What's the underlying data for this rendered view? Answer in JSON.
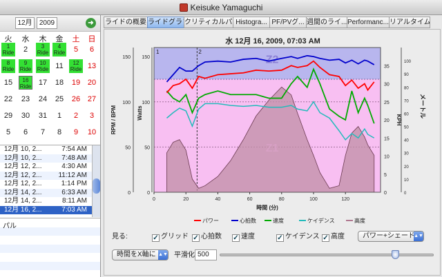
{
  "window": {
    "title": "Keisuke Yamaguchi"
  },
  "calendar": {
    "month": "12月",
    "year": "2009",
    "weekdays": [
      "火",
      "水",
      "木",
      "金",
      "土",
      "日"
    ],
    "days": [
      {
        "label": "1",
        "sub": "Ride",
        "ride": true,
        "col": 0,
        "row": 0
      },
      {
        "label": "2",
        "col": 1,
        "row": 0
      },
      {
        "label": "3",
        "sub": "Ride",
        "ride": true,
        "col": 2,
        "row": 0
      },
      {
        "label": "4",
        "sub": "Ride",
        "ride": true,
        "col": 3,
        "row": 0
      },
      {
        "label": "5",
        "red": true,
        "col": 4,
        "row": 0
      },
      {
        "label": "6",
        "red": true,
        "col": 5,
        "row": 0
      },
      {
        "label": "8",
        "sub": "Ride",
        "ride": true,
        "col": 0,
        "row": 1
      },
      {
        "label": "9",
        "sub": "Ride",
        "ride": true,
        "col": 1,
        "row": 1
      },
      {
        "label": "10",
        "sub": "Ride",
        "ride": true,
        "col": 2,
        "row": 1
      },
      {
        "label": "11",
        "col": 3,
        "row": 1
      },
      {
        "label": "12",
        "sub": "Ride",
        "ride": true,
        "col": 4,
        "row": 1
      },
      {
        "label": "13",
        "red": true,
        "col": 5,
        "row": 1
      },
      {
        "label": "15",
        "col": 0,
        "row": 2
      },
      {
        "label": "16",
        "sub": "Ride",
        "ride": true,
        "sel": true,
        "col": 1,
        "row": 2
      },
      {
        "label": "17",
        "col": 2,
        "row": 2
      },
      {
        "label": "18",
        "col": 3,
        "row": 2
      },
      {
        "label": "19",
        "red": true,
        "col": 4,
        "row": 2
      },
      {
        "label": "20",
        "red": true,
        "col": 5,
        "row": 2
      },
      {
        "label": "22",
        "col": 0,
        "row": 3
      },
      {
        "label": "23",
        "col": 1,
        "row": 3
      },
      {
        "label": "24",
        "col": 2,
        "row": 3
      },
      {
        "label": "25",
        "col": 3,
        "row": 3
      },
      {
        "label": "26",
        "red": true,
        "col": 4,
        "row": 3
      },
      {
        "label": "27",
        "red": true,
        "col": 5,
        "row": 3
      },
      {
        "label": "29",
        "col": 0,
        "row": 4
      },
      {
        "label": "30",
        "col": 1,
        "row": 4
      },
      {
        "label": "31",
        "col": 2,
        "row": 4
      },
      {
        "label": "1",
        "col": 3,
        "row": 4
      },
      {
        "label": "2",
        "red": true,
        "col": 4,
        "row": 4
      },
      {
        "label": "3",
        "red": true,
        "col": 5,
        "row": 4
      },
      {
        "label": "5",
        "col": 0,
        "row": 5
      },
      {
        "label": "6",
        "col": 1,
        "row": 5
      },
      {
        "label": "7",
        "col": 2,
        "row": 5
      },
      {
        "label": "8",
        "col": 3,
        "row": 5
      },
      {
        "label": "9",
        "red": true,
        "col": 4,
        "row": 5
      },
      {
        "label": "10",
        "red": true,
        "col": 5,
        "row": 5
      }
    ]
  },
  "ride_list": [
    {
      "date": "12月 10, 2...",
      "time": "7:54 AM"
    },
    {
      "date": "12月 10, 2...",
      "time": "7:48 AM"
    },
    {
      "date": "12月 12, 2...",
      "time": "4:30 AM"
    },
    {
      "date": "12月 12, 2...",
      "time": "11:12 AM"
    },
    {
      "date": "12月 12, 2...",
      "time": "1:14 PM"
    },
    {
      "date": "12月 14, 2...",
      "time": "6:33 AM"
    },
    {
      "date": "12月 14, 2...",
      "time": "8:11 AM"
    },
    {
      "date": "12月 16, 2...",
      "time": "7:03 AM",
      "selected": true
    }
  ],
  "notes_text": "パル",
  "tabs": [
    "ライドの概要",
    "ライドグラフ",
    "クリティカルパ...",
    "Histogra...",
    "PF/PVグ...",
    "週間のライ...",
    "Performanc...",
    "リアルタイム"
  ],
  "active_tab": 1,
  "chart_data": {
    "type": "line",
    "title": "水 12月 16, 2009, 07:03 AM",
    "xlabel": "時間 (分)",
    "ylabel_left_1": "RPM / BPM",
    "ylabel_left_2": "Watts",
    "ylabel_right_1": "KPH",
    "ylabel_right_2": "メートル",
    "xlim": [
      0,
      142
    ],
    "x_ticks": [
      0,
      20,
      40,
      60,
      80,
      100,
      120
    ],
    "y_ticks_rpm": [
      0,
      50,
      100,
      150
    ],
    "y_ticks_watts": [
      0,
      50,
      100,
      150
    ],
    "y_ticks_kph": [
      0,
      5,
      10,
      15,
      20,
      25,
      30,
      35
    ],
    "y_ticks_m": [
      0,
      10,
      20,
      30,
      40,
      50,
      60,
      70,
      80,
      90,
      100
    ],
    "zone_labels": [
      "Z2",
      "Z1"
    ],
    "markers": [
      "1",
      "2"
    ],
    "series": [
      {
        "name": "パワー",
        "color": "#ff0000",
        "x": [
          8,
          12,
          16,
          20,
          24,
          28,
          32,
          40,
          48,
          56,
          64,
          72,
          80,
          86,
          90,
          96,
          100,
          104,
          110,
          116,
          120,
          124,
          128,
          132,
          134,
          138
        ],
        "values": [
          110,
          118,
          120,
          125,
          115,
          128,
          126,
          130,
          131,
          132,
          135,
          134,
          135,
          140,
          138,
          140,
          145,
          138,
          130,
          128,
          118,
          124,
          115,
          120,
          113,
          122
        ]
      },
      {
        "name": "心拍数",
        "color": "#0000cc",
        "x": [
          8,
          12,
          16,
          20,
          24,
          28,
          32,
          40,
          48,
          56,
          64,
          72,
          80,
          86,
          90,
          96,
          100,
          104,
          110,
          116,
          120,
          124,
          128,
          132,
          134,
          138
        ],
        "values": [
          122,
          130,
          138,
          134,
          134,
          140,
          144,
          145,
          144,
          147,
          148,
          145,
          148,
          150,
          148,
          151,
          150,
          148,
          146,
          147,
          143,
          146,
          142,
          146,
          145,
          141
        ]
      },
      {
        "name": "速度",
        "color": "#00aa00",
        "x": [
          8,
          12,
          16,
          20,
          24,
          28,
          32,
          40,
          48,
          56,
          64,
          72,
          80,
          86,
          90,
          96,
          100,
          104,
          110,
          116,
          120,
          124,
          128,
          132,
          134,
          138
        ],
        "values": [
          28,
          26,
          25,
          27,
          22,
          26,
          27,
          28,
          27,
          27,
          27,
          26,
          26,
          30,
          32,
          29,
          34,
          30,
          23,
          21,
          20,
          28,
          22,
          26,
          24,
          19
        ]
      },
      {
        "name": "ケイデンス",
        "color": "#22bbbb",
        "x": [
          8,
          12,
          16,
          20,
          24,
          28,
          32,
          40,
          48,
          56,
          64,
          72,
          80,
          86,
          90,
          96,
          100,
          104,
          110,
          116,
          120,
          124,
          128,
          132,
          134,
          138
        ],
        "values": [
          82,
          88,
          93,
          90,
          73,
          92,
          98,
          98,
          96,
          95,
          96,
          94,
          94,
          96,
          92,
          90,
          100,
          88,
          82,
          68,
          58,
          65,
          60,
          70,
          64,
          60
        ]
      },
      {
        "name": "高度",
        "color": "#b07890",
        "x": [
          8,
          12,
          16,
          20,
          24,
          28,
          32,
          40,
          48,
          56,
          64,
          72,
          80,
          86,
          90,
          96,
          100,
          104,
          110,
          116,
          120,
          124,
          128,
          132,
          134,
          138
        ],
        "values": [
          30,
          38,
          40,
          32,
          10,
          3,
          5,
          12,
          24,
          40,
          58,
          70,
          80,
          74,
          60,
          40,
          28,
          15,
          3,
          5,
          28,
          45,
          50,
          42,
          36,
          28
        ]
      }
    ],
    "legend": [
      "パワー",
      "心拍数",
      "速度",
      "ケイデンス",
      "高度"
    ],
    "legend_position": "bottom"
  },
  "controls": {
    "show_label": "見る:",
    "checkboxes": [
      "グリッド",
      "心拍数",
      "速度",
      "ケイデンス",
      "高度"
    ],
    "display_mode": "パワー+シェード",
    "x_axis_mode": "時間をX軸に",
    "smoothing_label": "平滑化",
    "smoothing_value": "500",
    "smoothing_slider_fraction": 0.95
  }
}
